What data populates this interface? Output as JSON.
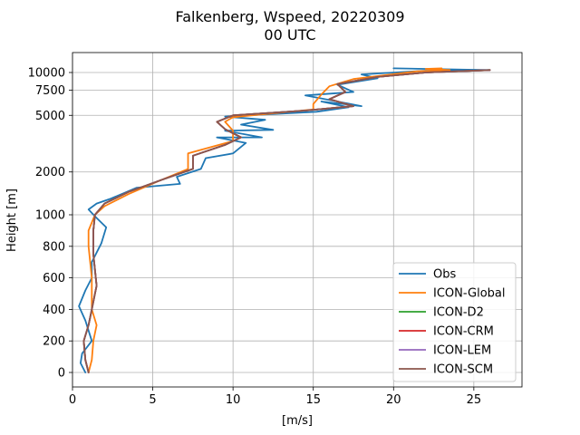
{
  "chart_data": {
    "type": "line",
    "title_line1": "Falkenberg, Wspeed, 20220309",
    "title_line2": "00 UTC",
    "xlabel": "[m/s]",
    "ylabel": "Height [m]",
    "xlim": [
      0,
      28
    ],
    "x_ticks": [
      0,
      5,
      10,
      15,
      20,
      25
    ],
    "y_ticks": [
      0,
      200,
      400,
      600,
      800,
      1000,
      2000,
      5000,
      7500,
      10000
    ],
    "y_scale": "linear below 1000 m, logarithmic above 1000 m",
    "grid": true,
    "legend_position": "lower-right",
    "series": [
      {
        "name": "Obs",
        "color": "#1f77b4",
        "points": [
          [
            0.8,
            0
          ],
          [
            0.5,
            60
          ],
          [
            0.6,
            120
          ],
          [
            1.2,
            200
          ],
          [
            0.8,
            330
          ],
          [
            0.4,
            420
          ],
          [
            0.8,
            520
          ],
          [
            1.2,
            600
          ],
          [
            1.2,
            700
          ],
          [
            1.8,
            820
          ],
          [
            2.1,
            920
          ],
          [
            1.5,
            980
          ],
          [
            1.2,
            1030
          ],
          [
            1.0,
            1090
          ],
          [
            1.5,
            1200
          ],
          [
            2.4,
            1300
          ],
          [
            4.0,
            1550
          ],
          [
            6.7,
            1650
          ],
          [
            6.5,
            1850
          ],
          [
            8.0,
            2100
          ],
          [
            8.3,
            2500
          ],
          [
            10.0,
            2700
          ],
          [
            10.8,
            3200
          ],
          [
            9.0,
            3500
          ],
          [
            11.8,
            3500
          ],
          [
            9.5,
            3900
          ],
          [
            12.5,
            3950
          ],
          [
            10.5,
            4300
          ],
          [
            12.0,
            4650
          ],
          [
            9.5,
            4900
          ],
          [
            15.2,
            5300
          ],
          [
            17.2,
            5700
          ],
          [
            15.5,
            6250
          ],
          [
            18.0,
            5800
          ],
          [
            14.5,
            6900
          ],
          [
            17.5,
            7300
          ],
          [
            16.5,
            8200
          ],
          [
            19.0,
            9100
          ],
          [
            18.0,
            9700
          ],
          [
            22.0,
            10300
          ],
          [
            26.0,
            10400
          ],
          [
            20.0,
            10700
          ]
        ]
      },
      {
        "name": "ICON-Global",
        "color": "#ff7f0e",
        "points": [
          [
            1.0,
            0
          ],
          [
            1.2,
            80
          ],
          [
            1.3,
            200
          ],
          [
            1.5,
            300
          ],
          [
            1.2,
            400
          ],
          [
            1.2,
            500
          ],
          [
            1.2,
            600
          ],
          [
            1.1,
            700
          ],
          [
            1.0,
            800
          ],
          [
            1.0,
            900
          ],
          [
            1.4,
            1000
          ],
          [
            2.0,
            1150
          ],
          [
            3.5,
            1400
          ],
          [
            5.5,
            1750
          ],
          [
            7.2,
            2100
          ],
          [
            7.2,
            2700
          ],
          [
            10.0,
            3300
          ],
          [
            10.0,
            3900
          ],
          [
            9.5,
            4500
          ],
          [
            10.0,
            4850
          ],
          [
            15.0,
            5500
          ],
          [
            15.0,
            6000
          ],
          [
            15.5,
            7000
          ],
          [
            16.0,
            8000
          ],
          [
            17.5,
            9000
          ],
          [
            21.5,
            10200
          ],
          [
            23.5,
            10400
          ],
          [
            22.0,
            10600
          ],
          [
            23.0,
            10700
          ]
        ]
      },
      {
        "name": "ICON-D2",
        "color": "#2ca02c",
        "points": [
          [
            1.0,
            0
          ],
          [
            0.8,
            80
          ],
          [
            0.7,
            200
          ],
          [
            1.0,
            300
          ],
          [
            1.2,
            400
          ],
          [
            1.4,
            500
          ],
          [
            1.5,
            550
          ],
          [
            1.4,
            650
          ],
          [
            1.3,
            750
          ],
          [
            1.3,
            900
          ],
          [
            1.4,
            1000
          ],
          [
            2.0,
            1200
          ],
          [
            3.5,
            1450
          ],
          [
            5.5,
            1750
          ],
          [
            7.5,
            2100
          ],
          [
            7.5,
            2600
          ],
          [
            9.5,
            3100
          ],
          [
            10.5,
            3500
          ],
          [
            9.5,
            4000
          ],
          [
            9.0,
            4500
          ],
          [
            10.0,
            5000
          ],
          [
            14.5,
            5400
          ],
          [
            17.5,
            5800
          ],
          [
            16.0,
            6500
          ],
          [
            17.0,
            7300
          ],
          [
            16.5,
            8300
          ],
          [
            19.0,
            9300
          ],
          [
            22.0,
            10000
          ],
          [
            26.0,
            10400
          ]
        ]
      },
      {
        "name": "ICON-CRM",
        "color": "#d62728",
        "points": [
          [
            1.0,
            0
          ],
          [
            0.8,
            80
          ],
          [
            0.7,
            200
          ],
          [
            1.0,
            300
          ],
          [
            1.2,
            400
          ],
          [
            1.4,
            500
          ],
          [
            1.5,
            550
          ],
          [
            1.4,
            650
          ],
          [
            1.3,
            750
          ],
          [
            1.3,
            900
          ],
          [
            1.4,
            1000
          ],
          [
            2.0,
            1200
          ],
          [
            3.5,
            1450
          ],
          [
            5.5,
            1750
          ],
          [
            7.5,
            2100
          ],
          [
            7.5,
            2600
          ],
          [
            9.5,
            3100
          ],
          [
            10.5,
            3500
          ],
          [
            9.5,
            4000
          ],
          [
            9.0,
            4500
          ],
          [
            10.0,
            5000
          ],
          [
            14.5,
            5400
          ],
          [
            17.5,
            5800
          ],
          [
            16.0,
            6500
          ],
          [
            17.0,
            7300
          ],
          [
            16.5,
            8300
          ],
          [
            19.0,
            9300
          ],
          [
            22.0,
            10000
          ],
          [
            26.0,
            10400
          ]
        ]
      },
      {
        "name": "ICON-LEM",
        "color": "#9467bd",
        "points": [
          [
            1.0,
            0
          ],
          [
            0.8,
            80
          ],
          [
            0.7,
            200
          ],
          [
            1.0,
            300
          ],
          [
            1.2,
            400
          ],
          [
            1.4,
            500
          ],
          [
            1.5,
            550
          ],
          [
            1.4,
            650
          ],
          [
            1.3,
            750
          ],
          [
            1.3,
            900
          ],
          [
            1.4,
            1000
          ],
          [
            2.0,
            1200
          ],
          [
            3.5,
            1450
          ],
          [
            5.5,
            1750
          ],
          [
            7.5,
            2100
          ],
          [
            7.5,
            2600
          ],
          [
            9.5,
            3100
          ],
          [
            10.5,
            3500
          ],
          [
            9.5,
            4000
          ],
          [
            9.0,
            4500
          ],
          [
            10.0,
            5000
          ],
          [
            14.5,
            5400
          ],
          [
            17.5,
            5800
          ],
          [
            16.0,
            6500
          ],
          [
            17.0,
            7300
          ],
          [
            16.5,
            8300
          ],
          [
            19.0,
            9300
          ],
          [
            22.0,
            10000
          ],
          [
            26.0,
            10400
          ]
        ]
      },
      {
        "name": "ICON-SCM",
        "color": "#8c564b",
        "points": [
          [
            1.0,
            0
          ],
          [
            0.8,
            80
          ],
          [
            0.7,
            200
          ],
          [
            1.0,
            300
          ],
          [
            1.2,
            400
          ],
          [
            1.4,
            500
          ],
          [
            1.5,
            550
          ],
          [
            1.4,
            650
          ],
          [
            1.3,
            750
          ],
          [
            1.3,
            900
          ],
          [
            1.4,
            1000
          ],
          [
            2.0,
            1200
          ],
          [
            3.5,
            1450
          ],
          [
            5.5,
            1750
          ],
          [
            7.5,
            2100
          ],
          [
            7.5,
            2600
          ],
          [
            9.5,
            3100
          ],
          [
            10.5,
            3500
          ],
          [
            9.5,
            4000
          ],
          [
            9.0,
            4500
          ],
          [
            10.0,
            5000
          ],
          [
            14.5,
            5400
          ],
          [
            17.5,
            5800
          ],
          [
            16.0,
            6500
          ],
          [
            17.0,
            7300
          ],
          [
            16.5,
            8300
          ],
          [
            19.0,
            9300
          ],
          [
            22.0,
            10000
          ],
          [
            26.0,
            10400
          ]
        ]
      }
    ]
  }
}
